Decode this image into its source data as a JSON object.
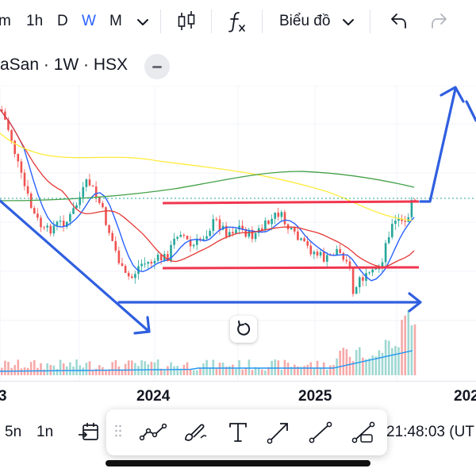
{
  "toolbar": {
    "interval_minute_partial": "m",
    "interval_1h": "1h",
    "interval_d": "D",
    "interval_w": "W",
    "interval_m": "M",
    "chart_type_menu": "Biểu đồ",
    "active_interval_color": "#2962ff",
    "icons": [
      "chevron-down-icon",
      "candlestick-icon",
      "indicators-fx-icon",
      "undo-icon",
      "redo-icon"
    ]
  },
  "symbol": {
    "title": "aSan · 1W · HSX"
  },
  "chart": {
    "time_labels": [
      "3",
      "2024",
      "2025",
      "202"
    ],
    "colors": {
      "up_candle": "#26a69a",
      "down_candle": "#ef5350",
      "ma_fast": "#2962ff",
      "ma_mid": "#e53935",
      "ma_slow": "#ffeb3b",
      "ma_long": "#43a047",
      "annotation_blue": "#2f5fe0",
      "annotation_red": "#f0364f",
      "volume_avg": "#2196f3"
    }
  },
  "bottom": {
    "range_5n": "5n",
    "range_1n": "1n",
    "clock": "21:48:03 (UT",
    "tools": [
      "calendar-goto-icon",
      "drag-handle-icon",
      "trend-line-icon",
      "brush-icon",
      "text-tool-icon",
      "arrow-tool-icon",
      "line-tool-icon",
      "path-tool-icon"
    ]
  }
}
